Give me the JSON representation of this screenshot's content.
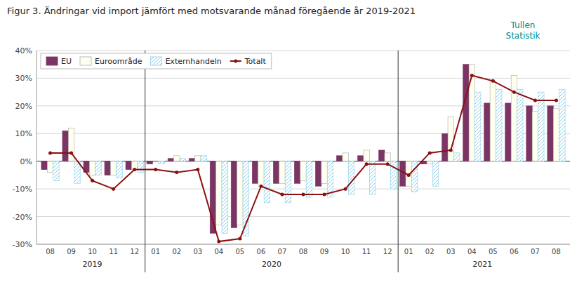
{
  "chart_data": {
    "type": "bar",
    "title": "Figur 3. Ändringar vid import jämfört med motsvarande månad föregående år 2019-2021",
    "annotations": [
      {
        "text": "Tullen",
        "color": "#008B8B"
      },
      {
        "text": "Statistik",
        "color": "#008B8B"
      }
    ],
    "categories": [
      "08",
      "09",
      "10",
      "11",
      "12",
      "01",
      "02",
      "03",
      "04",
      "05",
      "06",
      "07",
      "08",
      "09",
      "10",
      "11",
      "12",
      "01",
      "02",
      "03",
      "04",
      "05",
      "06",
      "07",
      "08"
    ],
    "category_groups": [
      {
        "label": "2019",
        "first": 0,
        "last": 4
      },
      {
        "label": "2020",
        "first": 5,
        "last": 16
      },
      {
        "label": "2021",
        "first": 17,
        "last": 24
      }
    ],
    "series": [
      {
        "name": "EU",
        "type": "bar",
        "color": "#7B3464",
        "values": [
          -3,
          11,
          -4,
          -5,
          -3,
          -1,
          1,
          1,
          -26,
          -24,
          -8,
          -8,
          -8,
          -9,
          2,
          2,
          4,
          -9,
          -1,
          10,
          35,
          21,
          21,
          20,
          20
        ]
      },
      {
        "name": "Euroområde",
        "type": "bar",
        "color": "#FFFFF0",
        "values": [
          -4,
          12,
          -5,
          -5,
          -3,
          0,
          2,
          2,
          -23,
          -23,
          -9,
          -8,
          -7,
          -8,
          3,
          4,
          3,
          -9,
          -1,
          16,
          35,
          29,
          31,
          18,
          19
        ]
      },
      {
        "name": "Externhandeln",
        "type": "bar",
        "color": "#87CEEB",
        "values": [
          -7,
          -8,
          -5,
          -6,
          -4,
          -1,
          1,
          2,
          -26,
          -27,
          -15,
          -15,
          -13,
          -13,
          -12,
          -12,
          -10,
          -11,
          -9,
          3,
          25,
          26,
          26,
          25,
          26
        ]
      },
      {
        "name": "Totalt",
        "type": "line",
        "color": "#8B1010",
        "marker": "circle",
        "values": [
          3,
          3,
          -7,
          -10,
          -3,
          -3,
          -4,
          -3,
          -29,
          -28,
          -9,
          -12,
          -12,
          -12,
          -10,
          -1,
          -1,
          -5,
          3,
          4,
          31,
          29,
          25,
          22,
          22
        ]
      }
    ],
    "ylim": [
      -30,
      40
    ],
    "yticks": [
      {
        "value": -30,
        "label": "-30%"
      },
      {
        "value": -20,
        "label": "-20%"
      },
      {
        "value": -10,
        "label": "-10%"
      },
      {
        "value": 0,
        "label": "0%"
      },
      {
        "value": 10,
        "label": "10%"
      },
      {
        "value": 20,
        "label": "20%"
      },
      {
        "value": 30,
        "label": "30%"
      },
      {
        "value": 40,
        "label": "40%"
      }
    ],
    "grid": true,
    "legend": "top-left"
  }
}
